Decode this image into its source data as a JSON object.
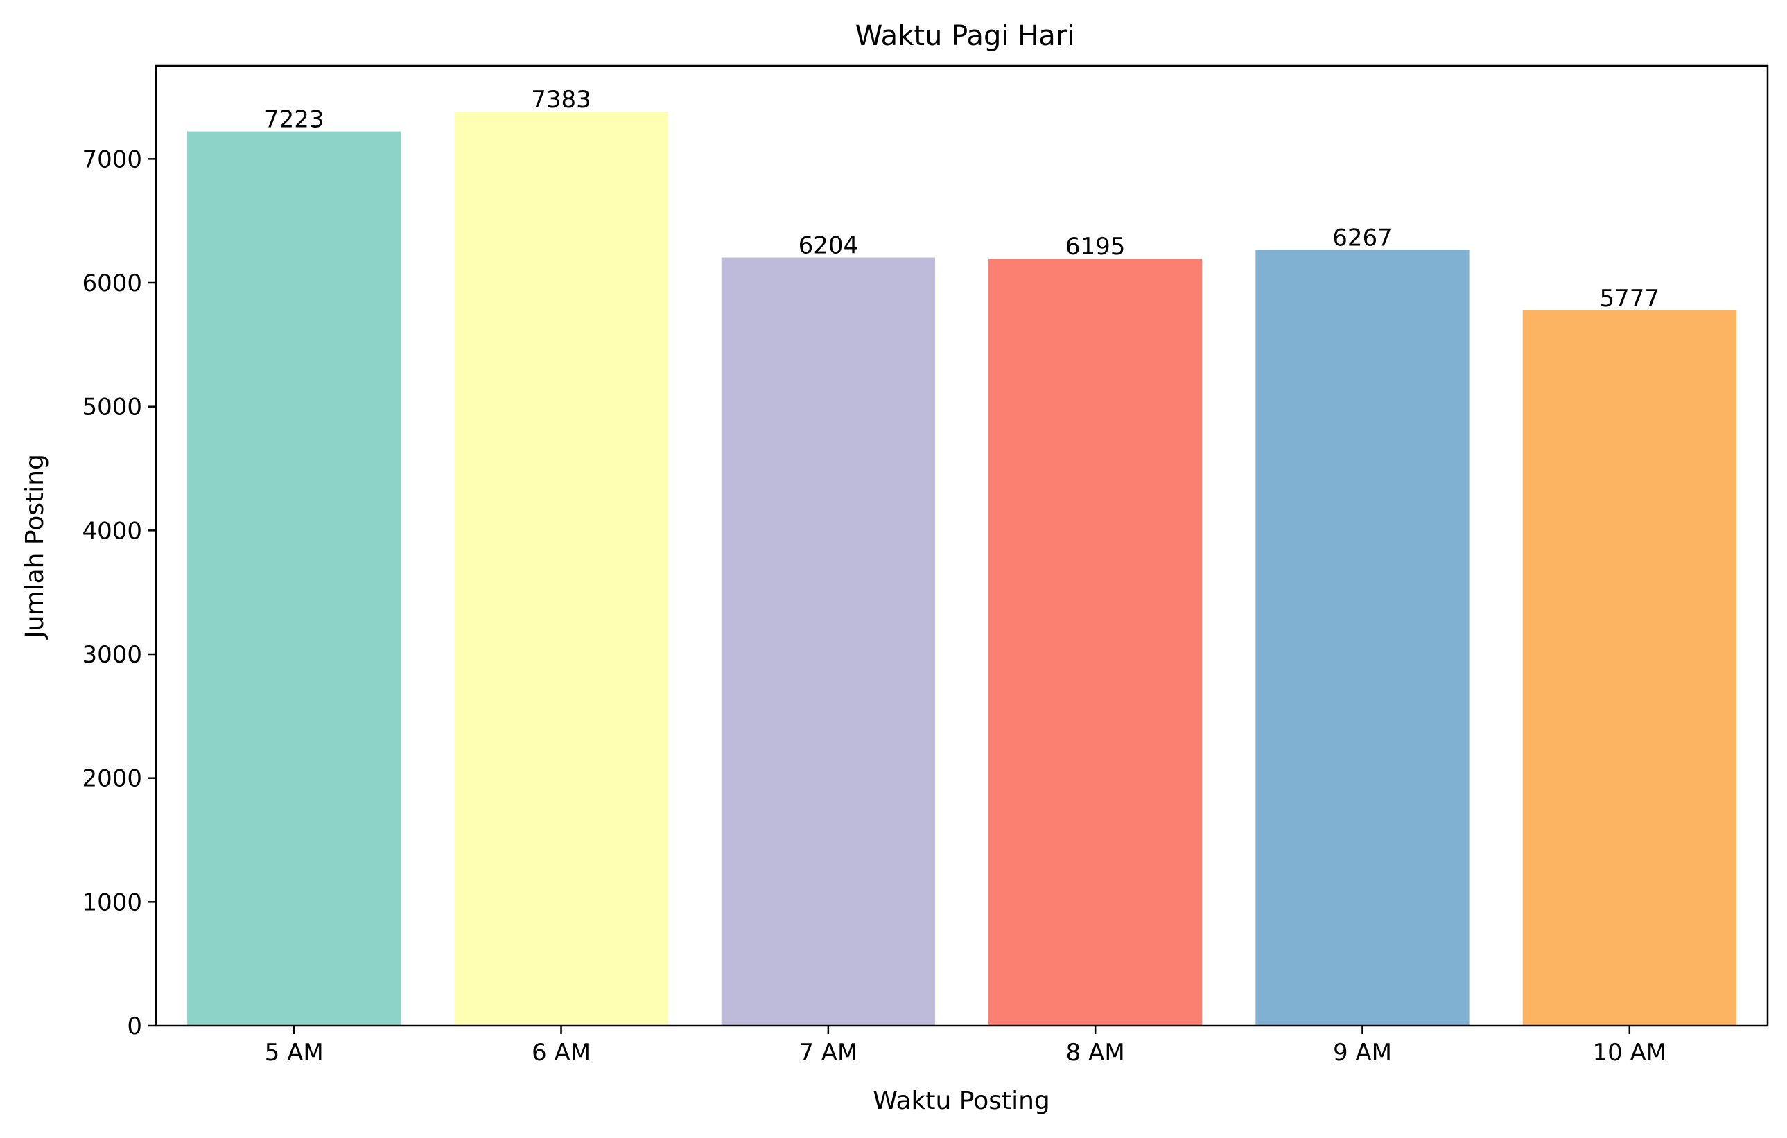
{
  "chart_data": {
    "type": "bar",
    "title": "Waktu Pagi Hari",
    "xlabel": "Waktu Posting",
    "ylabel": "Jumlah Posting",
    "categories": [
      "5 AM",
      "6 AM",
      "7 AM",
      "8 AM",
      "9 AM",
      "10 AM"
    ],
    "values": [
      7223,
      7383,
      6204,
      6195,
      6267,
      5777
    ],
    "data_labels": [
      "7223",
      "7383",
      "6204",
      "6195",
      "6267",
      "5777"
    ],
    "colors": [
      "#8dd3c7",
      "#ffffb3",
      "#bebada",
      "#fb8072",
      "#80b1d3",
      "#fdb462"
    ],
    "ylim": [
      0,
      7752
    ],
    "yticks": [
      0,
      1000,
      2000,
      3000,
      4000,
      5000,
      6000,
      7000
    ],
    "ytick_labels": [
      "0",
      "1000",
      "2000",
      "3000",
      "4000",
      "5000",
      "6000",
      "7000"
    ],
    "grid": false,
    "legend": "none"
  }
}
